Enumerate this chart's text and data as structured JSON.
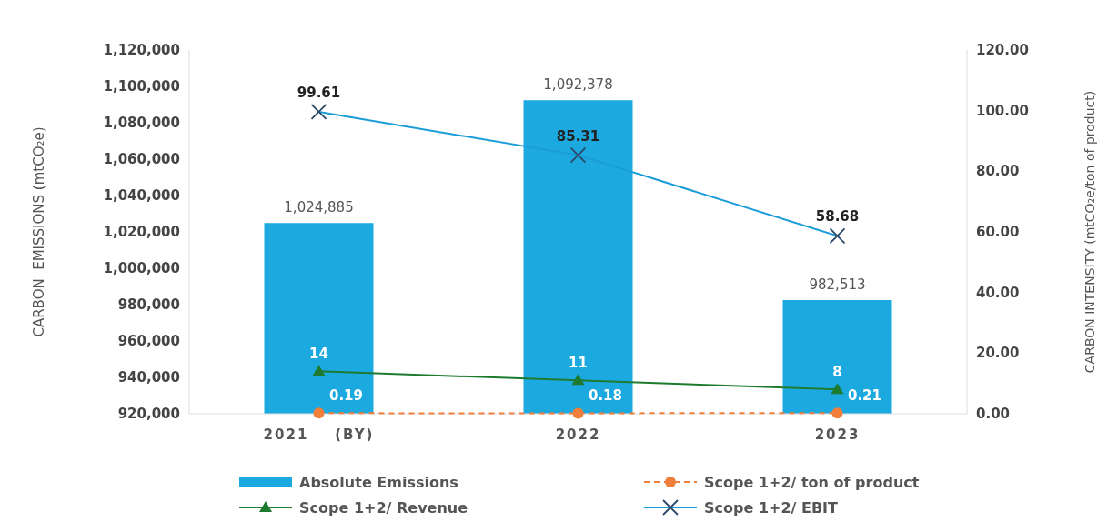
{
  "chart_data": {
    "type": "bar",
    "categories": [
      "2021    (BY)",
      "2022",
      "2023"
    ],
    "ylabel": "CARBON  EMISSIONS (mtCO₂e)",
    "y2label": "CARBON INTENSITY (mtCO₂e/ton of product)",
    "ylim": [
      920000,
      1120000
    ],
    "yticks": [
      {
        "value": 920000,
        "label": "920,000"
      },
      {
        "value": 940000,
        "label": "940,000"
      },
      {
        "value": 960000,
        "label": "960,000"
      },
      {
        "value": 980000,
        "label": "980,000"
      },
      {
        "value": 1000000,
        "label": "1,000,000"
      },
      {
        "value": 1020000,
        "label": "1,020,000"
      },
      {
        "value": 1040000,
        "label": "1,040,000"
      },
      {
        "value": 1060000,
        "label": "1,060,000"
      },
      {
        "value": 1080000,
        "label": "1,080,000"
      },
      {
        "value": 1100000,
        "label": "1,100,000"
      },
      {
        "value": 1120000,
        "label": "1,120,000"
      }
    ],
    "y2lim": [
      0,
      120
    ],
    "y2ticks": [
      {
        "value": 0,
        "label": "0.00"
      },
      {
        "value": 20,
        "label": "20.00"
      },
      {
        "value": 40,
        "label": "40.00"
      },
      {
        "value": 60,
        "label": "60.00"
      },
      {
        "value": 80,
        "label": "80.00"
      },
      {
        "value": 100,
        "label": "100.00"
      },
      {
        "value": 120,
        "label": "120.00"
      }
    ],
    "series": [
      {
        "name": "Absolute Emissions",
        "color": "#1ba9e0",
        "values": [
          1024885,
          1092378,
          982513
        ],
        "value_labels": [
          "1,024,885",
          "1,092,378",
          "982,513"
        ]
      },
      {
        "name": "Scope 1+2/ ton of product",
        "type": "line",
        "axis": "y2",
        "color": "#f07f3c",
        "marker": "circle",
        "line_style": "dashed",
        "values": [
          0.19,
          0.18,
          0.21
        ]
      },
      {
        "name": "Scope 1+2/ Revenue",
        "type": "line",
        "axis": "y2",
        "color": "#1e7a2e",
        "marker": "triangle",
        "line_style": "solid",
        "values": [
          14,
          11,
          8
        ]
      },
      {
        "name": "Scope 1+2/ EBIT",
        "type": "line",
        "axis": "y2",
        "color": "#1a9cd8",
        "marker": "cross",
        "line_style": "solid",
        "values": [
          99.61,
          85.31,
          58.68
        ]
      }
    ],
    "data_labels": true,
    "legend": "bottom",
    "grid": false
  }
}
